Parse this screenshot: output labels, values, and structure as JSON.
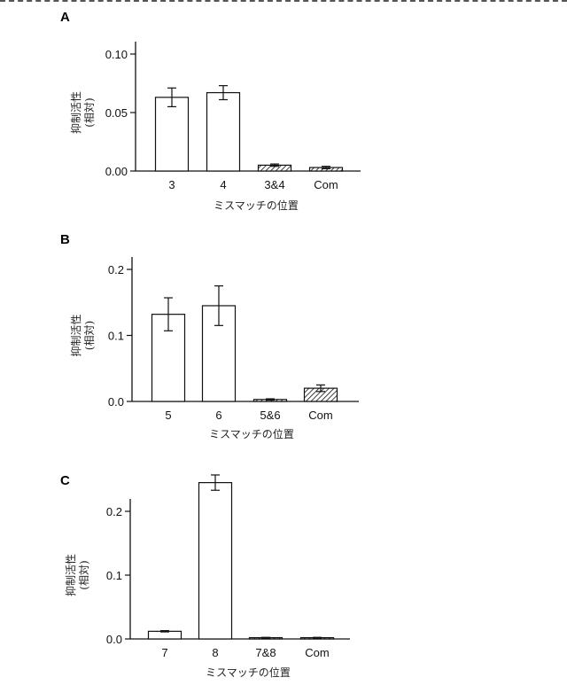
{
  "chart_data": [
    {
      "panel": "A",
      "type": "bar",
      "categories": [
        "3",
        "4",
        "3&4",
        "Com"
      ],
      "values": [
        0.063,
        0.067,
        0.005,
        0.003
      ],
      "errors": [
        0.008,
        0.006,
        0.001,
        0.001
      ],
      "hatched": [
        false,
        false,
        true,
        true
      ],
      "yticks": [
        "0.00",
        "0.05",
        "0.10"
      ],
      "ylim": [
        0,
        0.1
      ],
      "ylabel_line1": "抑制活性",
      "ylabel_line2": "(相対)",
      "xlabel": "ミスマッチの位置"
    },
    {
      "panel": "B",
      "type": "bar",
      "categories": [
        "5",
        "6",
        "5&6",
        "Com"
      ],
      "values": [
        0.132,
        0.145,
        0.003,
        0.02
      ],
      "errors": [
        0.025,
        0.03,
        0.001,
        0.005
      ],
      "hatched": [
        false,
        false,
        true,
        true
      ],
      "yticks": [
        "0.0",
        "0.1",
        "0.2"
      ],
      "ylim": [
        0,
        0.2
      ],
      "ylabel_line1": "抑制活性",
      "ylabel_line2": "(相対)",
      "xlabel": "ミスマッチの位置"
    },
    {
      "panel": "C",
      "type": "bar",
      "categories": [
        "7",
        "8",
        "7&8",
        "Com"
      ],
      "values": [
        0.012,
        0.245,
        0.002,
        0.002
      ],
      "errors": [
        0.001,
        0.012,
        0.0005,
        0.0005
      ],
      "hatched": [
        false,
        false,
        true,
        true
      ],
      "yticks": [
        "0.0",
        "0.1",
        "0.2"
      ],
      "ylim": [
        0,
        0.2
      ],
      "ylabel_line1": "抑制活性",
      "ylabel_line2": "(相対)",
      "xlabel": "ミスマッチの位置"
    }
  ]
}
